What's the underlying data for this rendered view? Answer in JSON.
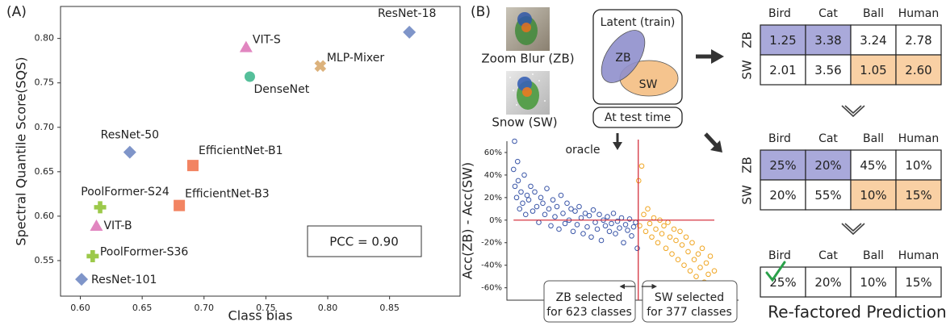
{
  "panel_labels": [
    "(A)",
    "(B)"
  ],
  "chart_data": [
    {
      "type": "scatter",
      "xlabel": "Class bias",
      "ylabel": "Spectral Quantile Score(SQS)",
      "xlim": [
        0.584,
        0.907
      ],
      "ylim": [
        0.51,
        0.836
      ],
      "xticks": [
        {
          "value": 0.6,
          "label": "0.60"
        },
        0.65,
        {
          "value": 0.7,
          "label": "0.70"
        },
        0.75,
        {
          "value": 0.8,
          "label": "0.80"
        },
        0.85
      ],
      "yticks": [
        0.55,
        {
          "value": 0.6,
          "label": "0.60"
        },
        0.65,
        {
          "value": 0.7,
          "label": "0.70"
        },
        0.75,
        {
          "value": 0.8,
          "label": "0.80"
        }
      ],
      "series": [
        {
          "marker": "diamond",
          "color": "#7f95c9",
          "labels": [
            "ResNet-18",
            "ResNet-50",
            "ResNet-101"
          ],
          "x": [
            0.866,
            0.64,
            0.601
          ],
          "values": [
            0.807,
            0.672,
            0.529
          ]
        },
        {
          "marker": "triangle",
          "color": "#e186c0",
          "labels": [
            "VIT-S",
            "VIT-B"
          ],
          "x": [
            0.734,
            0.613
          ],
          "values": [
            0.79,
            0.589
          ]
        },
        {
          "marker": "x",
          "color": "#dcb27c",
          "labels": [
            "MLP-Mixer"
          ],
          "x": [
            0.794
          ],
          "values": [
            0.769
          ]
        },
        {
          "marker": "circle",
          "color": "#55bf9a",
          "labels": [
            "DenseNet"
          ],
          "x": [
            0.737
          ],
          "values": [
            0.757
          ]
        },
        {
          "marker": "square",
          "color": "#f28462",
          "labels": [
            "EfficientNet-B1",
            "EfficientNet-B3"
          ],
          "x": [
            0.691,
            0.68
          ],
          "values": [
            0.657,
            0.612
          ]
        },
        {
          "marker": "plus",
          "color": "#9cc94a",
          "labels": [
            "PoolFormer-S24",
            "PoolFormer-S36"
          ],
          "x": [
            0.616,
            0.61
          ],
          "values": [
            0.61,
            0.555
          ]
        }
      ],
      "annotations": [
        "PCC = 0.90"
      ]
    },
    {
      "type": "scatter",
      "ylabel": "Acc(ZB) - Acc(SW)",
      "xlim": [
        -20,
        1120
      ],
      "ylim": [
        -71,
        70
      ],
      "yticks": [
        {
          "value": 60,
          "label": "60%"
        },
        {
          "value": 40,
          "label": "40%"
        },
        {
          "value": 20,
          "label": "20%"
        },
        {
          "value": 0,
          "label": "0%"
        },
        {
          "value": -20,
          "label": "-20%"
        },
        {
          "value": -40,
          "label": "-40%"
        },
        {
          "value": -60,
          "label": "-60%"
        }
      ],
      "reference_lines": {
        "y": 0,
        "x": 623,
        "color": "#d2202f"
      },
      "series": [
        {
          "marker": "circle-open",
          "color": "#3a56a8",
          "x": [
            5,
            10,
            12,
            20,
            25,
            28,
            35,
            42,
            50,
            58,
            65,
            72,
            80,
            90,
            100,
            110,
            120,
            130,
            140,
            150,
            160,
            170,
            180,
            190,
            200,
            210,
            220,
            230,
            240,
            250,
            260,
            270,
            280,
            290,
            300,
            310,
            320,
            330,
            340,
            350,
            360,
            370,
            380,
            390,
            400,
            410,
            420,
            430,
            440,
            450,
            460,
            470,
            480,
            490,
            500,
            510,
            520,
            530,
            540,
            550,
            560,
            570,
            580,
            590,
            600,
            610,
            618
          ],
          "values": [
            45,
            70,
            30,
            20,
            52,
            35,
            10,
            25,
            15,
            40,
            5,
            22,
            18,
            30,
            8,
            25,
            12,
            -2,
            20,
            15,
            5,
            28,
            10,
            -5,
            18,
            3,
            12,
            -8,
            22,
            6,
            -3,
            15,
            0,
            10,
            -10,
            8,
            -4,
            12,
            2,
            -12,
            6,
            -6,
            4,
            -15,
            9,
            -2,
            -8,
            5,
            -18,
            0,
            -5,
            3,
            -10,
            -3,
            6,
            -12,
            -1,
            -7,
            2,
            -20,
            -4,
            -9,
            1,
            -14,
            -6,
            -2,
            -25
          ]
        },
        {
          "marker": "circle-open",
          "color": "#f0a623",
          "x": [
            625,
            630,
            640,
            650,
            660,
            670,
            680,
            690,
            700,
            710,
            720,
            730,
            740,
            750,
            760,
            770,
            780,
            790,
            800,
            810,
            820,
            830,
            840,
            850,
            860,
            870,
            880,
            890,
            900,
            910,
            920,
            930,
            940,
            950,
            960,
            970,
            980,
            990,
            1000
          ],
          "values": [
            35,
            -5,
            48,
            5,
            -10,
            10,
            -3,
            -15,
            2,
            -8,
            -20,
            0,
            -12,
            -5,
            -25,
            -2,
            -15,
            -30,
            -8,
            -18,
            -35,
            -10,
            -22,
            -40,
            -15,
            -28,
            -45,
            -20,
            -35,
            -50,
            -30,
            -42,
            -25,
            -55,
            -38,
            -48,
            -32,
            -60,
            -45
          ]
        }
      ],
      "annotations": {
        "oracle": "oracle",
        "left_box": [
          "ZB selected",
          "for 623 classes"
        ],
        "right_box": [
          "SW selected",
          "for 377 classes"
        ]
      }
    }
  ],
  "diagram": {
    "images": [
      "Zoom Blur (ZB)",
      "Snow (SW)"
    ],
    "latent_title": "Latent (train)",
    "regions": [
      "ZB",
      "SW"
    ],
    "test_box": "At test time"
  },
  "tables": [
    {
      "columns": [
        "Bird",
        "Cat",
        "Ball",
        "Human"
      ],
      "rows": [
        {
          "label": "ZB",
          "cells": [
            "1.25",
            "3.38",
            "3.24",
            "2.78"
          ],
          "highlight": [
            "#a9a9da",
            "#a9a9da",
            null,
            null
          ]
        },
        {
          "label": "SW",
          "cells": [
            "2.01",
            "3.56",
            "1.05",
            "2.60"
          ],
          "highlight": [
            null,
            null,
            "#f9d0a4",
            "#f9d0a4"
          ]
        }
      ]
    },
    {
      "columns": [
        "Bird",
        "Cat",
        "Ball",
        "Human"
      ],
      "rows": [
        {
          "label": "ZB",
          "cells": [
            "25%",
            "20%",
            "45%",
            "10%"
          ],
          "highlight": [
            "#a9a9da",
            "#a9a9da",
            null,
            null
          ]
        },
        {
          "label": "SW",
          "cells": [
            "20%",
            "55%",
            "10%",
            "15%"
          ],
          "highlight": [
            null,
            null,
            "#f9d0a4",
            "#f9d0a4"
          ]
        }
      ]
    },
    {
      "columns": [
        "Bird",
        "Cat",
        "Ball",
        "Human"
      ],
      "rows": [
        {
          "cells": [
            "25%",
            "20%",
            "10%",
            "15%"
          ],
          "highlight": [
            null,
            null,
            null,
            null
          ]
        }
      ]
    }
  ],
  "footer": "Re-factored Prediction"
}
